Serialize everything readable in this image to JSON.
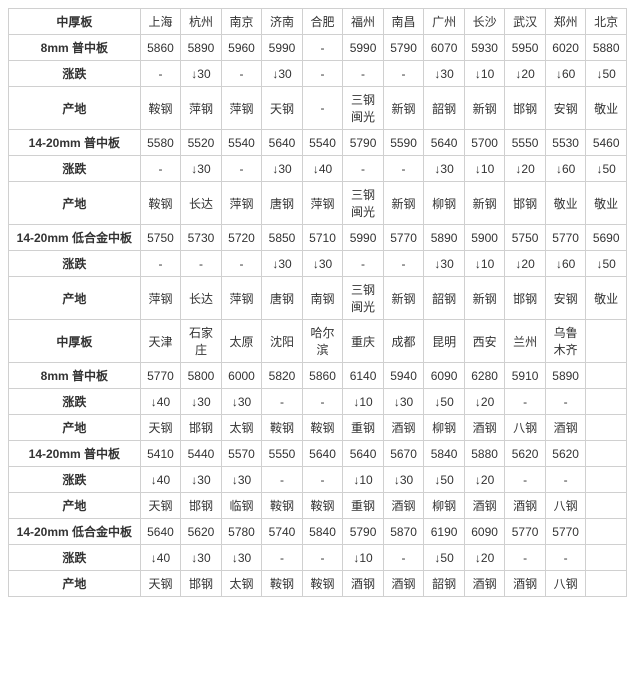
{
  "colors": {
    "border": "#d0d0d0",
    "header_red": "#d40000",
    "header_blue": "#1060c0",
    "down": "#009933",
    "text": "#333333",
    "background": "#ffffff"
  },
  "font_sizes": {
    "cell": 12
  },
  "labels": {
    "section": "中厚板",
    "change": "涨跌",
    "origin": "产地",
    "p8": "8mm 普中板",
    "p14_20": "14-20mm 普中板",
    "p14_20_alloy": "14-20mm 低合金中板"
  },
  "sections": [
    {
      "cities": [
        "上海",
        "杭州",
        "南京",
        "济南",
        "合肥",
        "福州",
        "南昌",
        "广州",
        "长沙",
        "武汉",
        "郑州",
        "北京"
      ],
      "col_count": 12,
      "products": [
        {
          "name_key": "p8",
          "prices": [
            "5860",
            "5890",
            "5960",
            "5990",
            "-",
            "5990",
            "5790",
            "6070",
            "5930",
            "5950",
            "6020",
            "5880"
          ],
          "changes": [
            "-",
            "↓30",
            "-",
            "↓30",
            "-",
            "-",
            "-",
            "↓30",
            "↓10",
            "↓20",
            "↓60",
            "↓50"
          ],
          "change_cls": [
            "",
            "chg-down",
            "",
            "chg-down",
            "",
            "",
            "",
            "chg-down",
            "chg-down",
            "chg-down",
            "chg-down",
            "chg-down"
          ],
          "origins": [
            "鞍钢",
            "萍钢",
            "萍钢",
            "天钢",
            "-",
            "三钢闽光",
            "新钢",
            "韶钢",
            "新钢",
            "邯钢",
            "安钢",
            "敬业"
          ]
        },
        {
          "name_key": "p14_20",
          "prices": [
            "5580",
            "5520",
            "5540",
            "5640",
            "5540",
            "5790",
            "5590",
            "5640",
            "5700",
            "5550",
            "5530",
            "5460"
          ],
          "changes": [
            "-",
            "↓30",
            "-",
            "↓30",
            "↓40",
            "-",
            "-",
            "↓30",
            "↓10",
            "↓20",
            "↓60",
            "↓50"
          ],
          "change_cls": [
            "",
            "chg-down",
            "",
            "chg-down",
            "chg-down",
            "",
            "",
            "chg-down",
            "chg-down",
            "chg-down",
            "chg-down",
            "chg-down"
          ],
          "origins": [
            "鞍钢",
            "长达",
            "萍钢",
            "唐钢",
            "萍钢",
            "三钢闽光",
            "新钢",
            "柳钢",
            "新钢",
            "邯钢",
            "敬业",
            "敬业"
          ]
        },
        {
          "name_key": "p14_20_alloy",
          "prices": [
            "5750",
            "5730",
            "5720",
            "5850",
            "5710",
            "5990",
            "5770",
            "5890",
            "5900",
            "5750",
            "5770",
            "5690"
          ],
          "changes": [
            "-",
            "-",
            "-",
            "↓30",
            "↓30",
            "-",
            "-",
            "↓30",
            "↓10",
            "↓20",
            "↓60",
            "↓50"
          ],
          "change_cls": [
            "",
            "",
            "",
            "chg-down",
            "chg-down",
            "",
            "",
            "chg-down",
            "chg-down",
            "chg-down",
            "chg-down",
            "chg-down"
          ],
          "origins": [
            "萍钢",
            "长达",
            "萍钢",
            "唐钢",
            "南钢",
            "三钢闽光",
            "新钢",
            "韶钢",
            "新钢",
            "邯钢",
            "安钢",
            "敬业"
          ]
        }
      ]
    },
    {
      "cities": [
        "天津",
        "石家庄",
        "太原",
        "沈阳",
        "哈尔滨",
        "重庆",
        "成都",
        "昆明",
        "西安",
        "兰州",
        "乌鲁木齐"
      ],
      "col_count": 11,
      "products": [
        {
          "name_key": "p8",
          "prices": [
            "5770",
            "5800",
            "6000",
            "5820",
            "5860",
            "6140",
            "5940",
            "6090",
            "6280",
            "5910",
            "5890"
          ],
          "changes": [
            "↓40",
            "↓30",
            "↓30",
            "-",
            "-",
            "↓10",
            "↓30",
            "↓50",
            "↓20",
            "-",
            "-"
          ],
          "change_cls": [
            "chg-down",
            "chg-down",
            "chg-down",
            "",
            "",
            "chg-down",
            "chg-down",
            "chg-down",
            "chg-down",
            "",
            ""
          ],
          "origins": [
            "天钢",
            "邯钢",
            "太钢",
            "鞍钢",
            "鞍钢",
            "重钢",
            "酒钢",
            "柳钢",
            "酒钢",
            "八钢",
            "酒钢"
          ]
        },
        {
          "name_key": "p14_20",
          "prices": [
            "5410",
            "5440",
            "5570",
            "5550",
            "5640",
            "5640",
            "5670",
            "5840",
            "5880",
            "5620",
            "5620"
          ],
          "changes": [
            "↓40",
            "↓30",
            "↓30",
            "-",
            "-",
            "↓10",
            "↓30",
            "↓50",
            "↓20",
            "-",
            "-"
          ],
          "change_cls": [
            "chg-down",
            "chg-down",
            "chg-down",
            "",
            "",
            "chg-down",
            "chg-down",
            "chg-down",
            "chg-down",
            "",
            ""
          ],
          "origins": [
            "天钢",
            "邯钢",
            "临钢",
            "鞍钢",
            "鞍钢",
            "重钢",
            "酒钢",
            "柳钢",
            "酒钢",
            "酒钢",
            "八钢"
          ]
        },
        {
          "name_key": "p14_20_alloy",
          "prices": [
            "5640",
            "5620",
            "5780",
            "5740",
            "5840",
            "5790",
            "5870",
            "6190",
            "6090",
            "5770",
            "5770"
          ],
          "changes": [
            "↓40",
            "↓30",
            "↓30",
            "-",
            "-",
            "↓10",
            "-",
            "↓50",
            "↓20",
            "-",
            "-"
          ],
          "change_cls": [
            "chg-down",
            "chg-down",
            "chg-down",
            "",
            "",
            "chg-down",
            "",
            "chg-down",
            "chg-down",
            "",
            ""
          ],
          "origins": [
            "天钢",
            "邯钢",
            "太钢",
            "鞍钢",
            "鞍钢",
            "酒钢",
            "酒钢",
            "韶钢",
            "酒钢",
            "酒钢",
            "八钢"
          ]
        }
      ]
    }
  ]
}
